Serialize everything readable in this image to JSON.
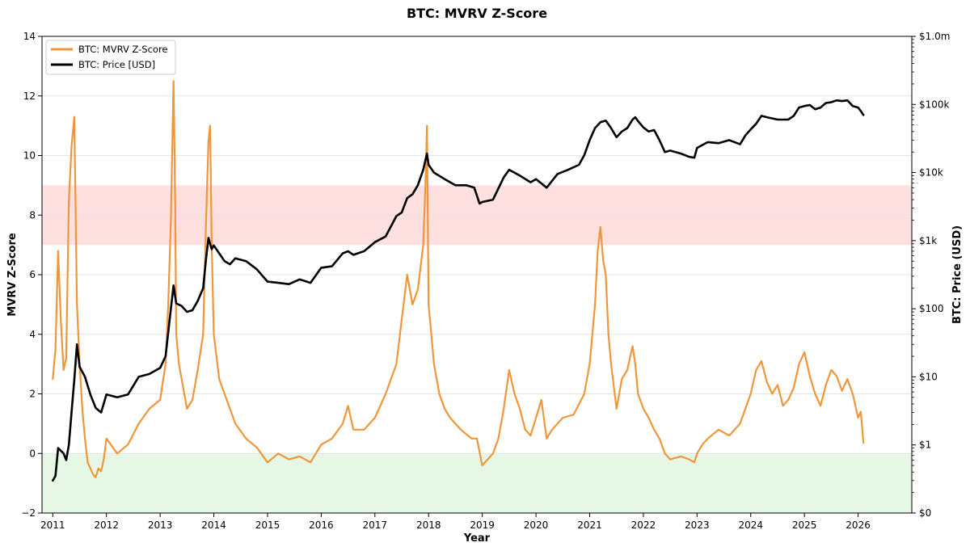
{
  "chart_data": {
    "type": "line",
    "title": "BTC: MVRV Z-Score",
    "xlabel": "Year",
    "ylabel": "MVRV Z-Score",
    "y2label": "BTC: Price (USD)",
    "xlim": [
      2010.8,
      2027.0
    ],
    "ylim": [
      -2,
      14
    ],
    "y2_scale": "log",
    "y2lim": [
      0.1,
      1000000
    ],
    "x_ticks": [
      "2011",
      "2012",
      "2013",
      "2014",
      "2015",
      "2016",
      "2017",
      "2018",
      "2019",
      "2020",
      "2021",
      "2022",
      "2023",
      "2024",
      "2025",
      "2026"
    ],
    "y_ticks": [
      "−2",
      "0",
      "2",
      "4",
      "6",
      "8",
      "10",
      "12",
      "14"
    ],
    "y2_ticks": [
      "$0",
      "$1",
      "$10",
      "$100",
      "$1k",
      "$10k",
      "$100k",
      "$1.0m"
    ],
    "grid": "horizontal",
    "legend_position": "top-left",
    "bands": [
      {
        "name": "overvalued-zone",
        "y_from": 7,
        "y_to": 9,
        "color": "#ffe0e0"
      },
      {
        "name": "undervalued-zone",
        "y_from": -2,
        "y_to": 0,
        "color": "#e6f7e6"
      }
    ],
    "series": [
      {
        "name": "BTC: MVRV Z-Score",
        "axis": "left",
        "color": "#f0963a",
        "x": [
          2011.0,
          2011.05,
          2011.1,
          2011.15,
          2011.2,
          2011.25,
          2011.3,
          2011.35,
          2011.4,
          2011.45,
          2011.5,
          2011.55,
          2011.6,
          2011.65,
          2011.7,
          2011.75,
          2011.8,
          2011.85,
          2011.9,
          2011.95,
          2012.0,
          2012.2,
          2012.4,
          2012.6,
          2012.8,
          2013.0,
          2013.1,
          2013.15,
          2013.2,
          2013.25,
          2013.28,
          2013.3,
          2013.35,
          2013.4,
          2013.5,
          2013.6,
          2013.7,
          2013.8,
          2013.85,
          2013.9,
          2013.93,
          2013.96,
          2014.0,
          2014.1,
          2014.2,
          2014.3,
          2014.4,
          2014.6,
          2014.8,
          2015.0,
          2015.2,
          2015.4,
          2015.6,
          2015.8,
          2016.0,
          2016.2,
          2016.4,
          2016.5,
          2016.6,
          2016.8,
          2017.0,
          2017.2,
          2017.3,
          2017.4,
          2017.5,
          2017.6,
          2017.7,
          2017.8,
          2017.9,
          2017.95,
          2017.97,
          2018.0,
          2018.1,
          2018.2,
          2018.3,
          2018.4,
          2018.6,
          2018.8,
          2018.9,
          2019.0,
          2019.1,
          2019.2,
          2019.3,
          2019.4,
          2019.5,
          2019.6,
          2019.7,
          2019.8,
          2019.9,
          2020.0,
          2020.1,
          2020.2,
          2020.3,
          2020.5,
          2020.7,
          2020.9,
          2021.0,
          2021.05,
          2021.1,
          2021.15,
          2021.2,
          2021.25,
          2021.3,
          2021.35,
          2021.4,
          2021.5,
          2021.6,
          2021.7,
          2021.8,
          2021.85,
          2021.9,
          2022.0,
          2022.1,
          2022.2,
          2022.3,
          2022.4,
          2022.5,
          2022.7,
          2022.85,
          2022.95,
          2023.0,
          2023.1,
          2023.2,
          2023.4,
          2023.6,
          2023.8,
          2023.9,
          2024.0,
          2024.1,
          2024.2,
          2024.3,
          2024.4,
          2024.5,
          2024.6,
          2024.7,
          2024.8,
          2024.9,
          2025.0,
          2025.1,
          2025.2,
          2025.3,
          2025.4,
          2025.5,
          2025.6,
          2025.7,
          2025.8,
          2025.9,
          2026.0,
          2026.05,
          2026.1
        ],
        "values": [
          2.5,
          3.5,
          6.8,
          4.5,
          2.8,
          3.2,
          8.5,
          10.3,
          11.3,
          5.0,
          3.0,
          1.5,
          0.5,
          -0.3,
          -0.5,
          -0.7,
          -0.8,
          -0.5,
          -0.6,
          -0.2,
          0.5,
          0.0,
          0.3,
          1.0,
          1.5,
          1.8,
          3.0,
          5.0,
          7.8,
          12.5,
          8.5,
          4.0,
          3.0,
          2.5,
          1.5,
          1.8,
          2.8,
          4.0,
          7.5,
          10.5,
          11.0,
          7.0,
          4.0,
          2.5,
          2.0,
          1.5,
          1.0,
          0.5,
          0.2,
          -0.3,
          0.0,
          -0.2,
          -0.1,
          -0.3,
          0.3,
          0.5,
          1.0,
          1.6,
          0.8,
          0.8,
          1.2,
          2.0,
          2.5,
          3.0,
          4.5,
          6.0,
          5.0,
          5.5,
          7.0,
          9.5,
          11.0,
          5.0,
          3.0,
          2.0,
          1.5,
          1.2,
          0.8,
          0.5,
          0.5,
          -0.4,
          -0.2,
          0.0,
          0.5,
          1.5,
          2.8,
          2.0,
          1.5,
          0.8,
          0.6,
          1.2,
          1.8,
          0.5,
          0.8,
          1.2,
          1.3,
          2.0,
          3.0,
          4.0,
          5.0,
          6.8,
          7.6,
          6.5,
          6.0,
          4.0,
          3.0,
          1.5,
          2.5,
          2.8,
          3.6,
          3.0,
          2.0,
          1.5,
          1.2,
          0.8,
          0.5,
          0.0,
          -0.2,
          -0.1,
          -0.2,
          -0.3,
          0.0,
          0.3,
          0.5,
          0.8,
          0.6,
          1.0,
          1.5,
          2.0,
          2.8,
          3.1,
          2.4,
          2.0,
          2.3,
          1.6,
          1.8,
          2.2,
          3.0,
          3.4,
          2.6,
          2.0,
          1.6,
          2.3,
          2.8,
          2.6,
          2.1,
          2.5,
          2.0,
          1.2,
          1.4,
          0.35
        ]
      },
      {
        "name": "BTC: Price [USD]",
        "axis": "right",
        "color": "#000000",
        "x": [
          2011.0,
          2011.05,
          2011.1,
          2011.2,
          2011.25,
          2011.3,
          2011.35,
          2011.4,
          2011.45,
          2011.5,
          2011.6,
          2011.7,
          2011.8,
          2011.9,
          2012.0,
          2012.2,
          2012.4,
          2012.6,
          2012.8,
          2013.0,
          2013.1,
          2013.2,
          2013.25,
          2013.3,
          2013.4,
          2013.5,
          2013.6,
          2013.7,
          2013.8,
          2013.85,
          2013.9,
          2013.93,
          2013.96,
          2014.0,
          2014.1,
          2014.2,
          2014.3,
          2014.4,
          2014.6,
          2014.8,
          2015.0,
          2015.2,
          2015.4,
          2015.6,
          2015.8,
          2016.0,
          2016.2,
          2016.4,
          2016.5,
          2016.6,
          2016.8,
          2017.0,
          2017.2,
          2017.4,
          2017.5,
          2017.6,
          2017.7,
          2017.8,
          2017.9,
          2017.97,
          2018.0,
          2018.1,
          2018.3,
          2018.5,
          2018.7,
          2018.85,
          2018.95,
          2019.0,
          2019.2,
          2019.4,
          2019.5,
          2019.7,
          2019.9,
          2020.0,
          2020.2,
          2020.4,
          2020.6,
          2020.8,
          2020.9,
          2021.0,
          2021.1,
          2021.2,
          2021.3,
          2021.4,
          2021.5,
          2021.6,
          2021.7,
          2021.8,
          2021.85,
          2021.9,
          2022.0,
          2022.1,
          2022.2,
          2022.3,
          2022.4,
          2022.5,
          2022.7,
          2022.85,
          2022.95,
          2023.0,
          2023.2,
          2023.4,
          2023.6,
          2023.8,
          2023.9,
          2024.0,
          2024.1,
          2024.2,
          2024.3,
          2024.5,
          2024.7,
          2024.8,
          2024.9,
          2025.0,
          2025.1,
          2025.2,
          2025.3,
          2025.4,
          2025.5,
          2025.6,
          2025.7,
          2025.8,
          2025.9,
          2026.0,
          2026.05,
          2026.1
        ],
        "values": [
          0.3,
          0.35,
          0.9,
          0.75,
          0.6,
          1.0,
          3.0,
          9.0,
          30.0,
          14.0,
          10.0,
          5.5,
          3.5,
          3.0,
          5.5,
          5.0,
          5.5,
          10.0,
          11.0,
          13.5,
          20.0,
          100.0,
          220.0,
          120.0,
          110.0,
          90.0,
          95.0,
          130.0,
          200.0,
          500.0,
          1100.0,
          900.0,
          750.0,
          850.0,
          650.0,
          500.0,
          450.0,
          550.0,
          500.0,
          380.0,
          250.0,
          240.0,
          230.0,
          270.0,
          240.0,
          400.0,
          420.0,
          650.0,
          700.0,
          620.0,
          700.0,
          950.0,
          1150.0,
          2300.0,
          2600.0,
          4200.0,
          4800.0,
          6500.0,
          11000.0,
          19000.0,
          13000.0,
          10000.0,
          8000.0,
          6500.0,
          6500.0,
          6000.0,
          3500.0,
          3700.0,
          4000.0,
          8500.0,
          11000.0,
          9000.0,
          7200.0,
          8000.0,
          6000.0,
          9500.0,
          11000.0,
          13000.0,
          18000.0,
          30000.0,
          45000.0,
          55000.0,
          58000.0,
          45000.0,
          33000.0,
          40000.0,
          45000.0,
          60000.0,
          65000.0,
          57000.0,
          46000.0,
          40000.0,
          42000.0,
          30000.0,
          20000.0,
          21000.0,
          19000.0,
          17000.0,
          16500.0,
          23000.0,
          28000.0,
          27000.0,
          30000.0,
          26000.0,
          35000.0,
          43000.0,
          52000.0,
          68000.0,
          65000.0,
          60000.0,
          60000.0,
          68000.0,
          90000.0,
          95000.0,
          98000.0,
          85000.0,
          90000.0,
          105000.0,
          108000.0,
          115000.0,
          112000.0,
          115000.0,
          95000.0,
          90000.0,
          80000.0,
          70000.0
        ]
      }
    ]
  }
}
